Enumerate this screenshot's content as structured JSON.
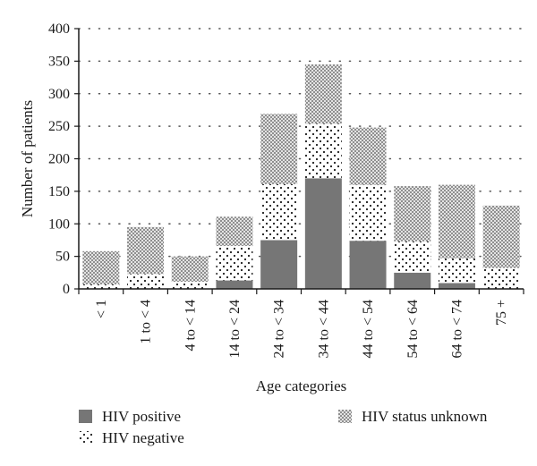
{
  "chart_data": {
    "type": "bar",
    "stacked": true,
    "categories": [
      "< 1",
      "1 to < 4",
      "4 to < 14",
      "14 to < 24",
      "24 to < 34",
      "34 to < 44",
      "44 to < 54",
      "54 to < 64",
      "64 to < 74",
      "75 +"
    ],
    "series": [
      {
        "name": "HIV positive",
        "values": [
          0,
          0,
          0,
          13,
          75,
          170,
          74,
          25,
          9,
          0
        ],
        "color": "#767676",
        "pattern": "solid"
      },
      {
        "name": "HIV negative",
        "values": [
          7,
          23,
          11,
          53,
          86,
          84,
          86,
          48,
          38,
          32
        ],
        "color": "#1a1a1a",
        "pattern": "dots"
      },
      {
        "name": "HIV status unknown",
        "values": [
          51,
          72,
          39,
          45,
          108,
          91,
          88,
          85,
          113,
          96
        ],
        "color": "#a9a9a9",
        "pattern": "checker"
      }
    ],
    "xlabel": "Age categories",
    "ylabel": "Number of patients",
    "ylim": [
      0,
      400
    ],
    "yticks": [
      0,
      50,
      100,
      150,
      200,
      250,
      300,
      350,
      400
    ],
    "grid": "horizontal-dotted",
    "legend_position": "bottom"
  }
}
